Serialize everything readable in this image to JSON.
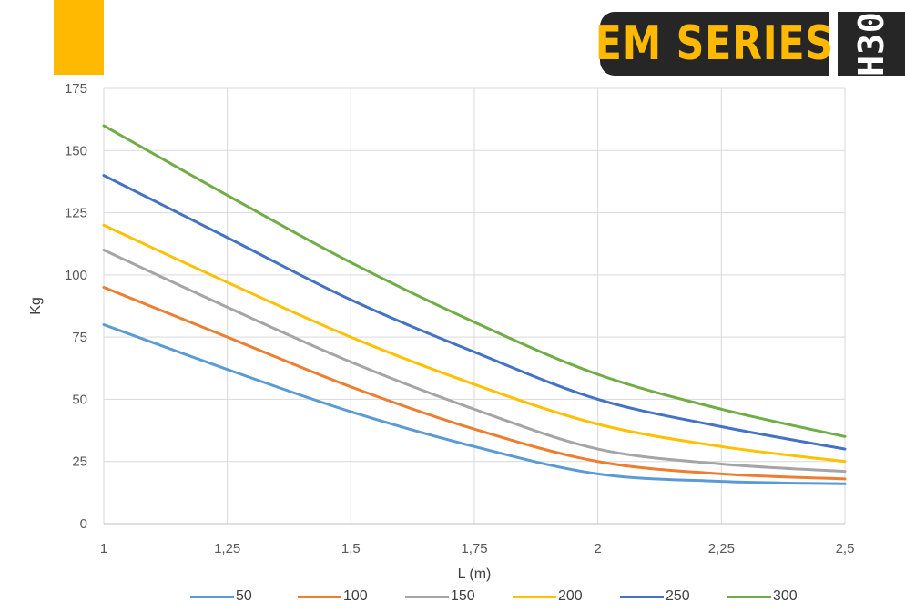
{
  "brand": {
    "series_title": "EM SERIES",
    "model": "H30",
    "accent_color": "#FFB900",
    "badge_color": "#262626"
  },
  "chart_data": {
    "type": "line",
    "title": "",
    "xlabel": "L (m)",
    "ylabel": "Kg",
    "x": [
      1,
      1.25,
      1.5,
      1.75,
      2,
      2.25,
      2.5
    ],
    "x_tick_labels": [
      "1",
      "1,25",
      "1,5",
      "1,75",
      "2",
      "2,25",
      "2,5"
    ],
    "y_ticks": [
      0,
      25,
      50,
      75,
      100,
      125,
      150,
      175
    ],
    "xlim": [
      1,
      2.5
    ],
    "ylim": [
      0,
      175
    ],
    "grid": true,
    "legend_position": "bottom",
    "series": [
      {
        "name": "50",
        "color": "#5B9BD5",
        "values": [
          80,
          62,
          45,
          31,
          20,
          17,
          16
        ]
      },
      {
        "name": "100",
        "color": "#ED7D31",
        "values": [
          95,
          75,
          55,
          38,
          25,
          20,
          18
        ]
      },
      {
        "name": "150",
        "color": "#A5A5A5",
        "values": [
          110,
          87,
          65,
          46,
          30,
          24,
          21
        ]
      },
      {
        "name": "200",
        "color": "#FFC000",
        "values": [
          120,
          97,
          75,
          56,
          40,
          31,
          25
        ]
      },
      {
        "name": "250",
        "color": "#4472C4",
        "values": [
          140,
          115,
          90,
          69,
          50,
          39,
          30
        ]
      },
      {
        "name": "300",
        "color": "#70AD47",
        "values": [
          160,
          132,
          105,
          81,
          60,
          46,
          35
        ]
      }
    ]
  }
}
